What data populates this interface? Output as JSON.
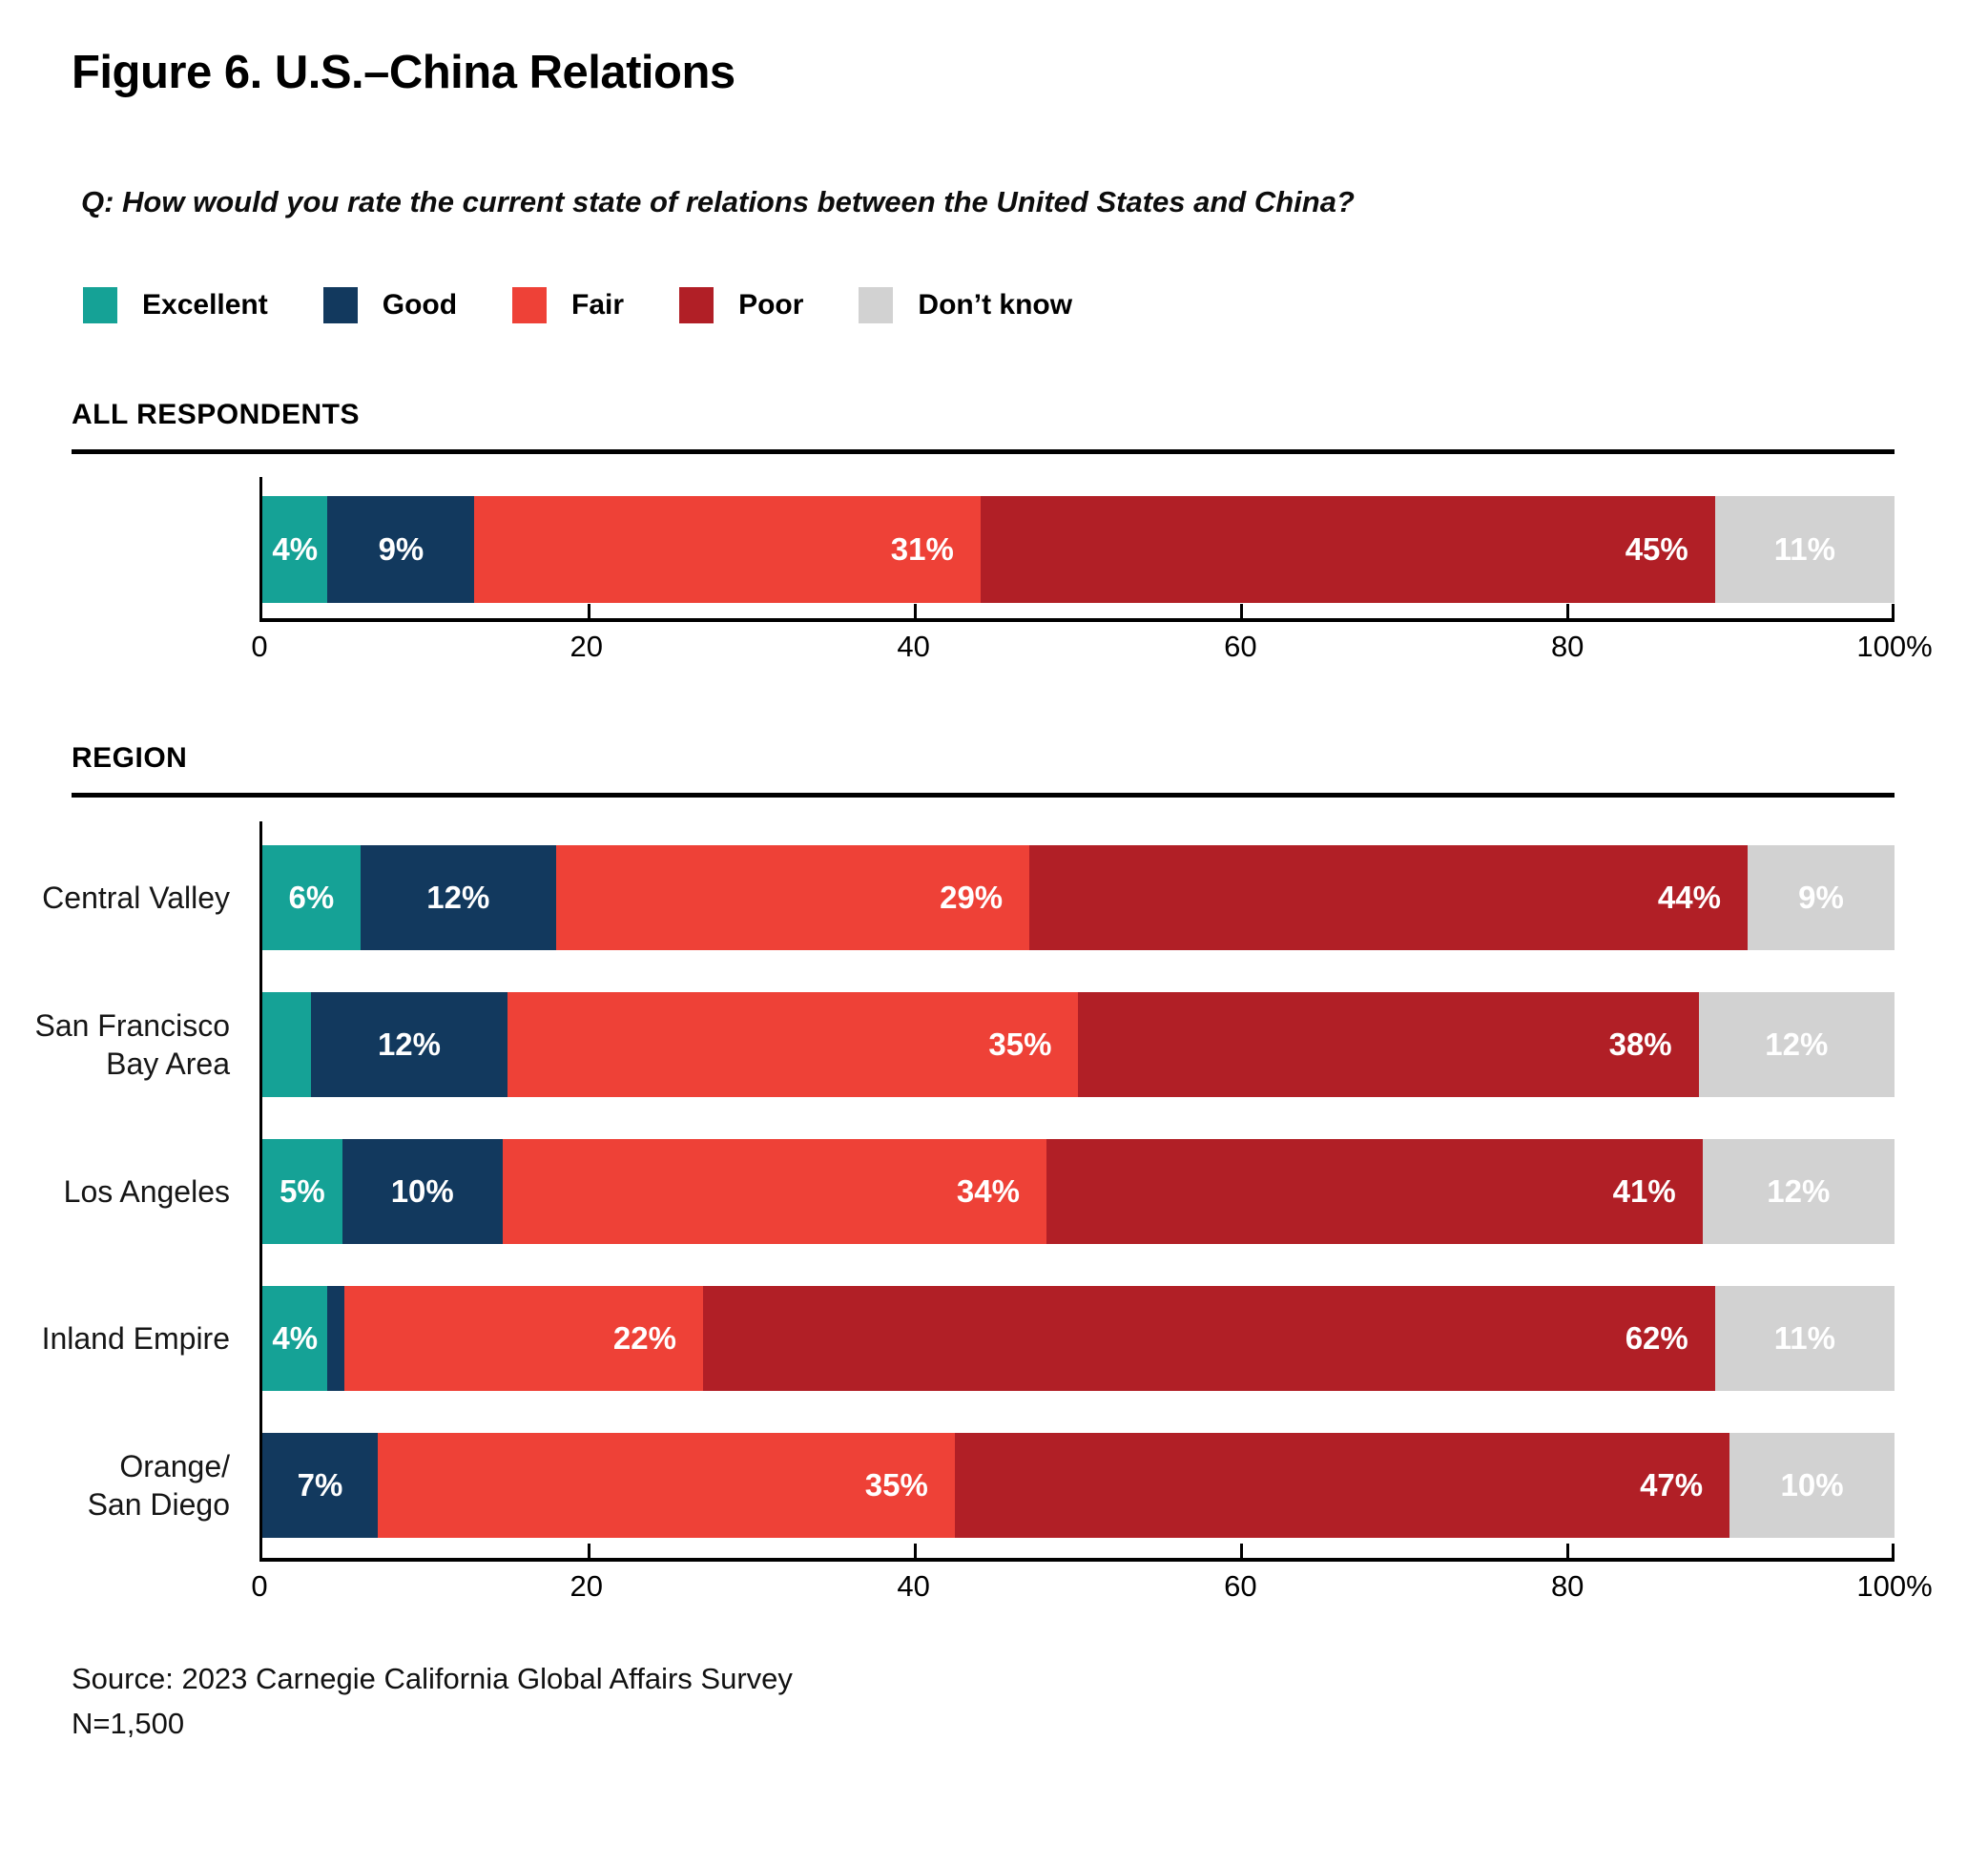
{
  "title": "Figure 6. U.S.–China Relations",
  "question": "Q: How would you rate the current state of relations between the United States and China?",
  "sections": {
    "all": {
      "heading": "ALL RESPONDENTS"
    },
    "region": {
      "heading": "REGION"
    }
  },
  "source": "Source: 2023 Carnegie California Global Affairs Survey",
  "sample_size": "N=1,500",
  "chart_data": {
    "type": "bar",
    "stacked": true,
    "orientation": "horizontal",
    "unit": "%",
    "title": "Figure 6. U.S.–China Relations",
    "legend_position": "top",
    "categories": [
      "Excellent",
      "Good",
      "Fair",
      "Poor",
      "Don’t know"
    ],
    "category_keys": [
      "excellent",
      "good",
      "fair",
      "poor",
      "dont-know"
    ],
    "colors": [
      "#15A296",
      "#12395E",
      "#EE4137",
      "#B11F26",
      "#D2D2D2"
    ],
    "label_alignments": [
      "center",
      "center",
      "right",
      "right",
      "center"
    ],
    "groups": [
      {
        "heading": "ALL RESPONDENTS",
        "rows": [
          {
            "label_lines": [],
            "values": [
              4,
              9,
              31,
              45,
              11
            ],
            "unlabeled": []
          }
        ]
      },
      {
        "heading": "REGION",
        "rows": [
          {
            "label_lines": [
              "Central Valley"
            ],
            "values": [
              6,
              12,
              29,
              44,
              9
            ],
            "unlabeled": []
          },
          {
            "label_lines": [
              "San Francisco",
              "Bay Area"
            ],
            "values": [
              3,
              12,
              35,
              38,
              12
            ],
            "unlabeled": [
              0
            ]
          },
          {
            "label_lines": [
              "Los Angeles"
            ],
            "values": [
              5,
              10,
              34,
              41,
              12
            ],
            "unlabeled": []
          },
          {
            "label_lines": [
              "Inland Empire"
            ],
            "values": [
              4,
              1,
              22,
              62,
              11
            ],
            "unlabeled": [
              1
            ]
          },
          {
            "label_lines": [
              "Orange/",
              "San Diego"
            ],
            "values": [
              0,
              7,
              35,
              47,
              10
            ],
            "unlabeled": []
          }
        ]
      }
    ],
    "xaxis": {
      "range": [
        0,
        100
      ],
      "ticks": [
        20,
        40,
        60,
        80,
        100
      ],
      "tick_labels": [
        "0",
        "20",
        "40",
        "60",
        "80",
        "100%"
      ],
      "tick_label_positions": [
        0,
        20,
        40,
        60,
        80,
        100
      ]
    }
  }
}
